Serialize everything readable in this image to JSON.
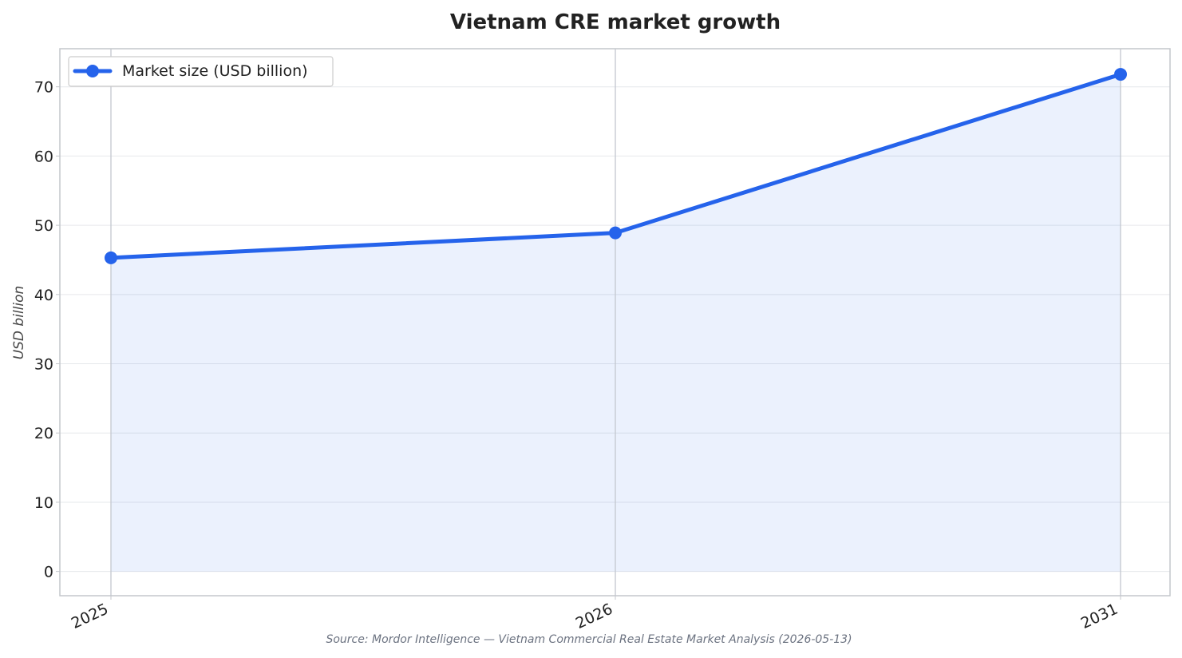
{
  "chart_data": {
    "type": "line",
    "title": "Vietnam CRE market growth",
    "xlabel": "",
    "ylabel": "USD billion",
    "categories": [
      "2025",
      "2026",
      "2031"
    ],
    "x": [
      2025,
      2026,
      2031
    ],
    "series": [
      {
        "name": "Market size (USD billion)",
        "values": [
          45.3,
          48.9,
          71.8
        ],
        "color": "#2563eb",
        "fill": "area"
      }
    ],
    "ylim": [
      -3.5,
      75.5
    ],
    "yticks": [
      0,
      10,
      20,
      30,
      40,
      50,
      60,
      70
    ],
    "grid": true,
    "legend_position": "top-left",
    "source": "Source: Mordor Intelligence — Vietnam Commercial Real Estate Market Analysis (2026-05-13)"
  }
}
